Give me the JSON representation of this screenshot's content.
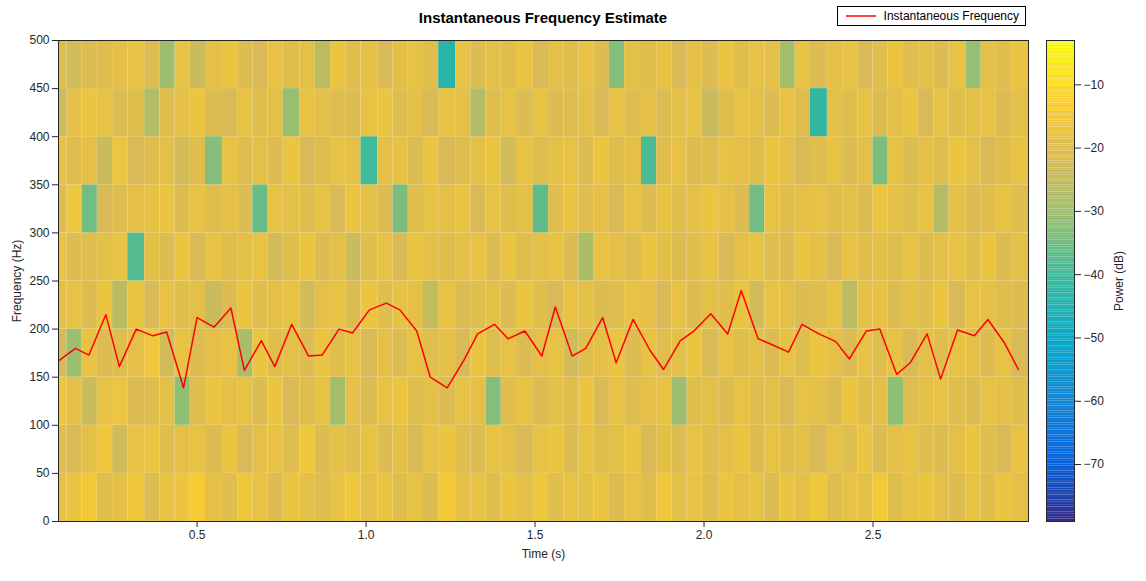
{
  "chart_data": {
    "type": "spectrogram",
    "title": "Instantaneous Frequency Estimate",
    "xlabel": "Time (s)",
    "ylabel": "Frequency (Hz)",
    "xlim": [
      0.09,
      2.96
    ],
    "xticks": [
      0.5,
      1,
      1.5,
      2,
      2.5
    ],
    "ylim": [
      0,
      500
    ],
    "yticks": [
      0,
      50,
      100,
      150,
      200,
      250,
      300,
      350,
      400,
      450,
      500
    ],
    "legend": "top",
    "series": [
      {
        "name": "Instantaneous Frequency",
        "type": "line",
        "color": "#ff0000",
        "x": [
          0.09,
          0.14,
          0.18,
          0.23,
          0.27,
          0.32,
          0.37,
          0.41,
          0.46,
          0.5,
          0.55,
          0.6,
          0.64,
          0.69,
          0.73,
          0.78,
          0.83,
          0.87,
          0.92,
          0.96,
          1.01,
          1.06,
          1.1,
          1.15,
          1.19,
          1.24,
          1.29,
          1.33,
          1.38,
          1.42,
          1.47,
          1.52,
          1.56,
          1.61,
          1.65,
          1.7,
          1.74,
          1.79,
          1.84,
          1.88,
          1.93,
          1.97,
          2.02,
          2.07,
          2.11,
          2.16,
          2.2,
          2.25,
          2.29,
          2.34,
          2.39,
          2.43,
          2.48,
          2.52,
          2.57,
          2.61,
          2.66,
          2.7,
          2.75,
          2.8,
          2.84,
          2.89,
          2.93
        ],
        "values": [
          167,
          180,
          173,
          215,
          161,
          200,
          193,
          197,
          139,
          212,
          202,
          222,
          157,
          188,
          161,
          205,
          172,
          173,
          200,
          196,
          220,
          227,
          220,
          198,
          150,
          139,
          168,
          195,
          205,
          190,
          198,
          172,
          223,
          172,
          180,
          212,
          165,
          210,
          178,
          158,
          188,
          198,
          216,
          195,
          240,
          190,
          184,
          176,
          205,
          195,
          187,
          169,
          198,
          200,
          153,
          165,
          195,
          148,
          199,
          193,
          210,
          185,
          158
        ]
      }
    ],
    "spectrogram": {
      "t": [
        0.09,
        0.14,
        0.18,
        0.23,
        0.27,
        0.32,
        0.37,
        0.41,
        0.46,
        0.5,
        0.55,
        0.6,
        0.64,
        0.69,
        0.73,
        0.78,
        0.83,
        0.87,
        0.92,
        0.96,
        1.01,
        1.06,
        1.1,
        1.15,
        1.19,
        1.24,
        1.29,
        1.33,
        1.38,
        1.42,
        1.47,
        1.52,
        1.56,
        1.61,
        1.65,
        1.7,
        1.74,
        1.79,
        1.84,
        1.88,
        1.93,
        1.97,
        2.02,
        2.07,
        2.11,
        2.16,
        2.2,
        2.25,
        2.29,
        2.34,
        2.39,
        2.43,
        2.48,
        2.52,
        2.57,
        2.61,
        2.66,
        2.7,
        2.75,
        2.8,
        2.84,
        2.89,
        2.93
      ],
      "f": [
        25,
        75,
        125,
        175,
        225,
        275,
        325,
        375,
        425,
        475
      ],
      "power": [
        [
          -18,
          -20,
          -16,
          -22,
          -19,
          -17,
          -21,
          -18,
          -24,
          -20
        ],
        [
          -17,
          -22,
          -19,
          -30,
          -18,
          -21,
          -16,
          -20,
          -19,
          -23
        ],
        [
          -15,
          -19,
          -24,
          -18,
          -21,
          -20,
          -35,
          -19,
          -17,
          -21
        ],
        [
          -20,
          -16,
          -18,
          -21,
          -17,
          -19,
          -22,
          -24,
          -18,
          -20
        ],
        [
          -19,
          -23,
          -17,
          -20,
          -26,
          -18,
          -20,
          -17,
          -21,
          -19
        ],
        [
          -16,
          -18,
          -21,
          -19,
          -17,
          -38,
          -19,
          -22,
          -20,
          -18
        ],
        [
          -21,
          -17,
          -20,
          -16,
          -22,
          -19,
          -18,
          -20,
          -27,
          -21
        ],
        [
          -18,
          -20,
          -19,
          -23,
          -18,
          -21,
          -17,
          -19,
          -20,
          -30
        ],
        [
          -17,
          -19,
          -32,
          -18,
          -20,
          -17,
          -21,
          -23,
          -19,
          -18
        ],
        [
          -14,
          -18,
          -20,
          -21,
          -19,
          -22,
          -18,
          -20,
          -17,
          -24
        ],
        [
          -19,
          -21,
          -17,
          -19,
          -24,
          -18,
          -20,
          -33,
          -21,
          -19
        ],
        [
          -20,
          -17,
          -19,
          -18,
          -21,
          -20,
          -19,
          -18,
          -22,
          -17
        ],
        [
          -16,
          -22,
          -18,
          -28,
          -17,
          -19,
          -21,
          -20,
          -18,
          -21
        ],
        [
          -18,
          -19,
          -21,
          -17,
          -20,
          -18,
          -36,
          -19,
          -20,
          -22
        ],
        [
          -21,
          -18,
          -17,
          -20,
          -19,
          -23,
          -18,
          -21,
          -19,
          -18
        ],
        [
          -17,
          -20,
          -22,
          -19,
          -18,
          -20,
          -19,
          -17,
          -31,
          -20
        ],
        [
          -19,
          -16,
          -20,
          -21,
          -23,
          -17,
          -20,
          -22,
          -18,
          -19
        ],
        [
          -20,
          -21,
          -18,
          -17,
          -19,
          -21,
          -18,
          -20,
          -19,
          -26
        ],
        [
          -18,
          -19,
          -29,
          -20,
          -18,
          -19,
          -22,
          -18,
          -20,
          -17
        ],
        [
          -16,
          -20,
          -19,
          -18,
          -21,
          -24,
          -17,
          -19,
          -21,
          -20
        ],
        [
          -19,
          -18,
          -21,
          -22,
          -17,
          -20,
          -19,
          -40,
          -18,
          -19
        ],
        [
          -17,
          -21,
          -18,
          -19,
          -20,
          -18,
          -21,
          -19,
          -17,
          -22
        ],
        [
          -20,
          -19,
          -17,
          -21,
          -18,
          -22,
          -34,
          -18,
          -20,
          -19
        ],
        [
          -18,
          -22,
          -20,
          -18,
          -19,
          -17,
          -20,
          -21,
          -19,
          -18
        ],
        [
          -21,
          -18,
          -19,
          -20,
          -25,
          -19,
          -18,
          -17,
          -22,
          -20
        ],
        [
          -15,
          -17,
          -21,
          -19,
          -18,
          -20,
          -19,
          -22,
          -18,
          -44
        ],
        [
          -19,
          -20,
          -18,
          -22,
          -21,
          -19,
          -17,
          -20,
          -19,
          -18
        ],
        [
          -18,
          -21,
          -19,
          -17,
          -20,
          -18,
          -22,
          -19,
          -27,
          -21
        ],
        [
          -20,
          -18,
          -33,
          -20,
          -19,
          -21,
          -18,
          -17,
          -20,
          -19
        ],
        [
          -17,
          -19,
          -20,
          -18,
          -21,
          -17,
          -20,
          -23,
          -18,
          -20
        ],
        [
          -19,
          -22,
          -18,
          -21,
          -17,
          -20,
          -19,
          -18,
          -21,
          -17
        ],
        [
          -16,
          -18,
          -21,
          -19,
          -20,
          -19,
          -37,
          -20,
          -18,
          -22
        ],
        [
          -20,
          -17,
          -19,
          -18,
          -22,
          -18,
          -20,
          -19,
          -21,
          -19
        ],
        [
          -18,
          -21,
          -20,
          -23,
          -18,
          -21,
          -17,
          -18,
          -20,
          -20
        ],
        [
          -19,
          -18,
          -17,
          -20,
          -19,
          -28,
          -20,
          -21,
          -19,
          -18
        ],
        [
          -17,
          -20,
          -22,
          -19,
          -21,
          -18,
          -19,
          -17,
          -22,
          -21
        ],
        [
          -21,
          -19,
          -18,
          -17,
          -20,
          -19,
          -22,
          -20,
          -18,
          -33
        ],
        [
          -18,
          -17,
          -20,
          -21,
          -18,
          -20,
          -18,
          -19,
          -20,
          -19
        ],
        [
          -20,
          -22,
          -19,
          -18,
          -19,
          -17,
          -21,
          -39,
          -19,
          -20
        ],
        [
          -16,
          -19,
          -18,
          -20,
          -22,
          -19,
          -18,
          -20,
          -21,
          -18
        ],
        [
          -19,
          -21,
          -30,
          -19,
          -18,
          -21,
          -20,
          -18,
          -19,
          -22
        ],
        [
          -18,
          -18,
          -20,
          -17,
          -21,
          -20,
          -19,
          -21,
          -18,
          -19
        ],
        [
          -20,
          -20,
          -19,
          -22,
          -19,
          -18,
          -17,
          -20,
          -24,
          -21
        ],
        [
          -17,
          -19,
          -21,
          -18,
          -20,
          -22,
          -19,
          -18,
          -20,
          -17
        ],
        [
          -19,
          -17,
          -18,
          -20,
          -17,
          -19,
          -21,
          -19,
          -18,
          -20
        ],
        [
          -18,
          -21,
          -20,
          -19,
          -23,
          -18,
          -35,
          -20,
          -19,
          -18
        ],
        [
          -21,
          -18,
          -19,
          -21,
          -18,
          -20,
          -18,
          -17,
          -21,
          -19
        ],
        [
          -17,
          -20,
          -22,
          -18,
          -19,
          -21,
          -20,
          -19,
          -18,
          -29
        ],
        [
          -19,
          -19,
          -18,
          -20,
          -21,
          -17,
          -19,
          -22,
          -20,
          -18
        ],
        [
          -16,
          -22,
          -19,
          -17,
          -20,
          -19,
          -18,
          -20,
          -42,
          -21
        ],
        [
          -20,
          -18,
          -21,
          -19,
          -18,
          -22,
          -20,
          -18,
          -19,
          -19
        ],
        [
          -18,
          -20,
          -17,
          -21,
          -26,
          -18,
          -19,
          -21,
          -20,
          -18
        ],
        [
          -19,
          -17,
          -20,
          -18,
          -19,
          -20,
          -21,
          -19,
          -18,
          -22
        ],
        [
          -15,
          -21,
          -19,
          -20,
          -18,
          -19,
          -17,
          -34,
          -21,
          -20
        ],
        [
          -20,
          -19,
          -32,
          -18,
          -21,
          -20,
          -19,
          -18,
          -19,
          -17
        ],
        [
          -18,
          -18,
          -20,
          -22,
          -19,
          -18,
          -20,
          -21,
          -17,
          -20
        ],
        [
          -17,
          -20,
          -19,
          -19,
          -20,
          -21,
          -18,
          -19,
          -22,
          -19
        ],
        [
          -19,
          -21,
          -18,
          -20,
          -17,
          -19,
          -27,
          -20,
          -18,
          -21
        ],
        [
          -21,
          -19,
          -20,
          -18,
          -22,
          -18,
          -19,
          -17,
          -20,
          -18
        ],
        [
          -18,
          -17,
          -21,
          -19,
          -18,
          -20,
          -21,
          -19,
          -19,
          -31
        ],
        [
          -20,
          -20,
          -18,
          -21,
          -19,
          -17,
          -20,
          -22,
          -18,
          -19
        ],
        [
          -17,
          -22,
          -19,
          -18,
          -20,
          -21,
          -18,
          -20,
          -21,
          -20
        ],
        [
          -19,
          -18,
          -20,
          -22,
          -21,
          -19,
          -20,
          -18,
          -19,
          -17
        ]
      ]
    },
    "colorbar": {
      "label": "Power (dB)",
      "lim": [
        -79,
        -3
      ],
      "ticks": [
        -70,
        -60,
        -50,
        -40,
        -30,
        -20,
        -10
      ]
    }
  }
}
